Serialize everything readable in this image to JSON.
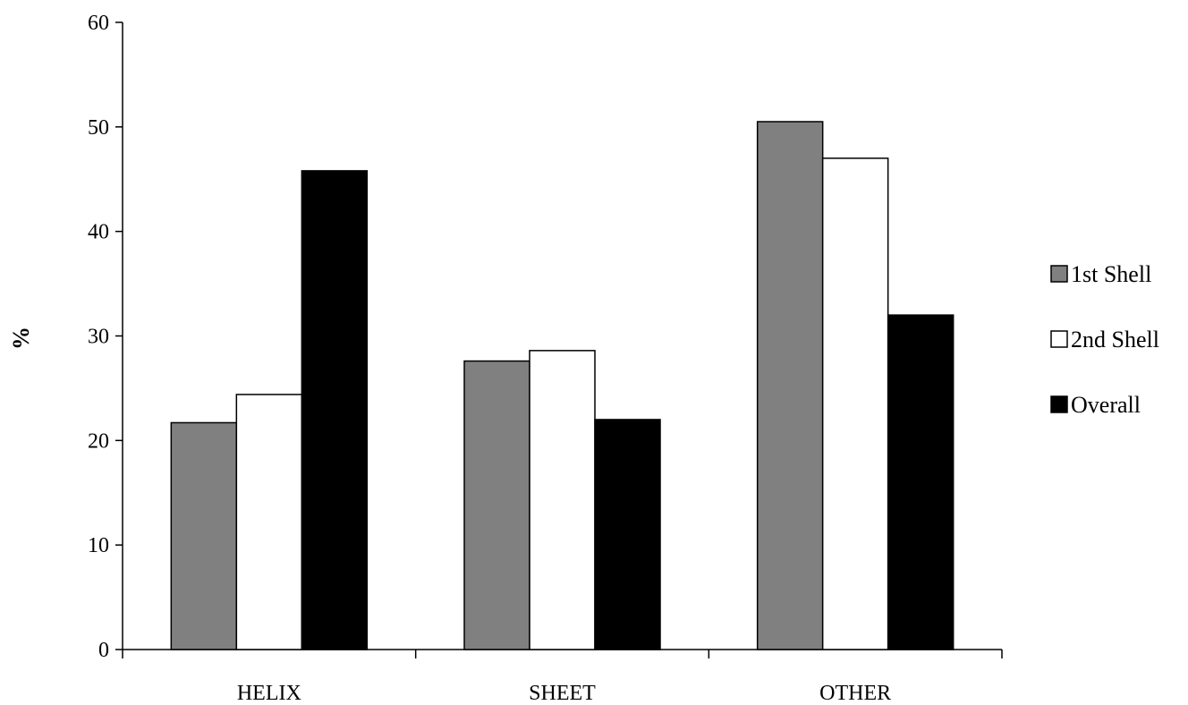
{
  "chart_data": {
    "type": "bar",
    "categories": [
      "HELIX",
      "SHEET",
      "OTHER"
    ],
    "series": [
      {
        "name": "1st Shell",
        "values": [
          21.7,
          27.6,
          50.5
        ],
        "color": "#808080"
      },
      {
        "name": "2nd Shell",
        "values": [
          24.4,
          28.6,
          47.0
        ],
        "color": "#ffffff"
      },
      {
        "name": "Overall",
        "values": [
          45.8,
          22.0,
          32.0
        ],
        "color": "#000000"
      }
    ],
    "title": "",
    "xlabel": "",
    "ylabel": "%",
    "ylim": [
      0,
      60
    ],
    "yticks": [
      0,
      10,
      20,
      30,
      40,
      50,
      60
    ],
    "grid": false,
    "legend_position": "right"
  }
}
